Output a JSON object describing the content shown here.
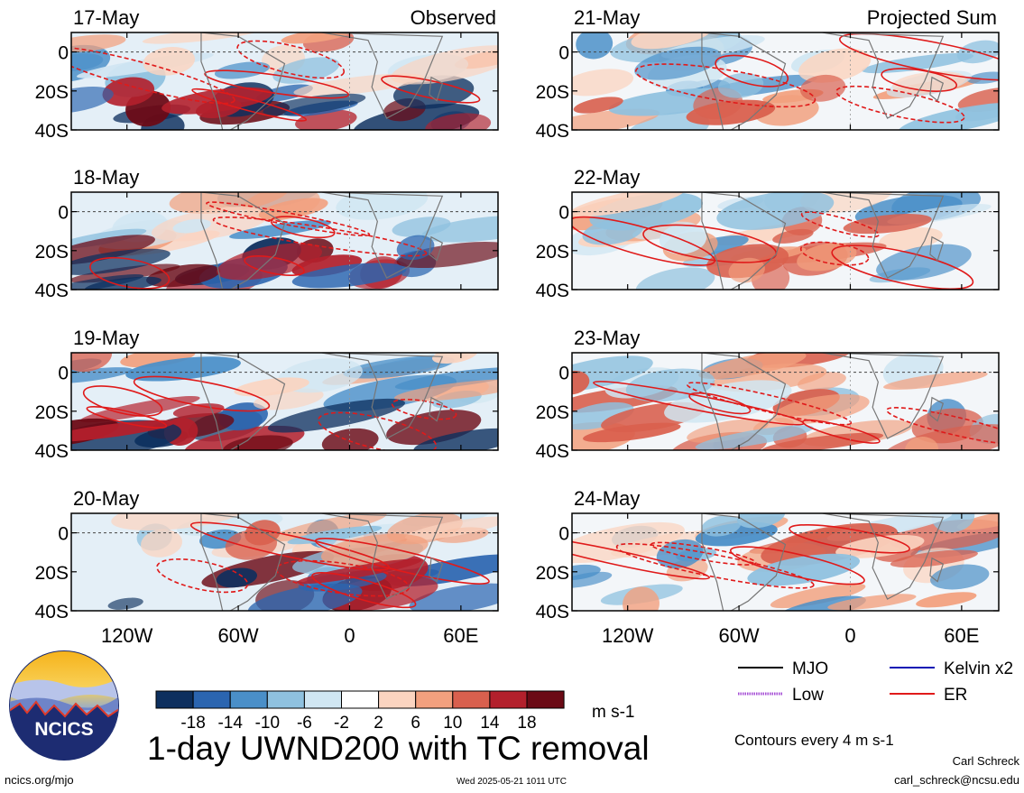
{
  "chart_data": {
    "type": "heatmap",
    "title": "1-day UWND200 with TC removal",
    "units": "m s-1",
    "contour_note": "Contours every 4 m s-1",
    "columns": [
      "Observed",
      "Projected Sum"
    ],
    "x_ticks": [
      "120W",
      "60W",
      "0",
      "60E"
    ],
    "x_tick_values": [
      -120,
      -60,
      0,
      60
    ],
    "y_ticks": [
      "0",
      "20S",
      "40S"
    ],
    "y_tick_values": [
      0,
      -20,
      -40
    ],
    "xlim": [
      -150,
      80
    ],
    "ylim": [
      -40,
      10
    ],
    "colorbar": {
      "labels": [
        "-18",
        "-14",
        "-10",
        "-6",
        "-2",
        "2",
        "6",
        "10",
        "14",
        "18"
      ],
      "colors": [
        "#0d2f5e",
        "#2b65b0",
        "#4a8fc8",
        "#8fc1df",
        "#d0e6f2",
        "#ffffff",
        "#fbd4c0",
        "#f2a07e",
        "#d9604e",
        "#b3202c",
        "#6b0a15"
      ]
    },
    "legend": [
      {
        "label": "MJO",
        "color": "#000000",
        "style": "solid"
      },
      {
        "label": "Kelvin x2",
        "color": "#0a14b4",
        "style": "solid"
      },
      {
        "label": "Low",
        "color": "#a64fd6",
        "style": "dotted"
      },
      {
        "label": "ER",
        "color": "#e01a1a",
        "style": "solid"
      }
    ],
    "panels": [
      {
        "date": "17-May",
        "column": 0,
        "label": "Observed"
      },
      {
        "date": "18-May",
        "column": 0,
        "label": ""
      },
      {
        "date": "19-May",
        "column": 0,
        "label": ""
      },
      {
        "date": "20-May",
        "column": 0,
        "label": ""
      },
      {
        "date": "21-May",
        "column": 1,
        "label": "Projected Sum"
      },
      {
        "date": "22-May",
        "column": 1,
        "label": ""
      },
      {
        "date": "23-May",
        "column": 1,
        "label": ""
      },
      {
        "date": "24-May",
        "column": 1,
        "label": ""
      }
    ]
  },
  "logo_text": "NCICS",
  "footer": {
    "url": "ncics.org/mjo",
    "timestamp": "Wed 2025-05-21 1011 UTC",
    "author": "Carl Schreck",
    "email": "carl_schreck@ncsu.edu"
  }
}
